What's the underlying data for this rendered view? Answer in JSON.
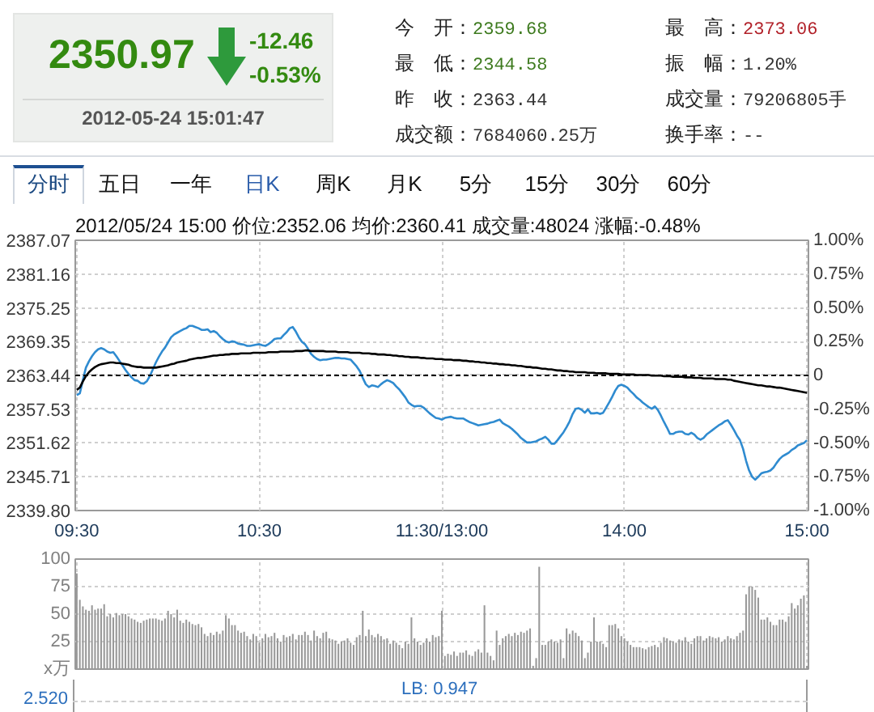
{
  "chart_data": [
    {
      "type": "other",
      "title": "2350.97",
      "annotations": [
        "-12.46",
        "-0.53%",
        "2012-05-24 15:01:47",
        "今　开：",
        "2359.68",
        "最　高：",
        "2373.06",
        "最　低：",
        "2344.58",
        "振　幅：",
        "1.20%",
        "昨　收：",
        "2363.44",
        "成交量：",
        "79206805手",
        "成交额：",
        "7684060.25万",
        "换手率：",
        "--"
      ]
    },
    {
      "type": "other",
      "categories": [
        "分时",
        "五日",
        "一年",
        "日K",
        "周K",
        "月K",
        "5分",
        "15分",
        "30分",
        "60分"
      ]
    },
    {
      "type": "line",
      "title": "2012/05/24 15:00 价位:2352.06 均价:2360.41 成交量:48024 涨幅:-0.48%",
      "categories": [
        "09:30",
        null,
        null,
        null,
        null,
        null,
        null,
        null,
        null,
        null,
        null,
        null,
        null,
        null,
        null,
        null,
        null,
        null,
        null,
        null,
        null,
        null,
        null,
        null,
        null,
        null,
        null,
        null,
        null,
        null,
        null,
        null,
        null,
        null,
        null,
        null,
        null,
        null,
        null,
        null,
        null,
        null,
        null,
        null,
        null,
        null,
        null,
        null,
        null,
        null,
        null,
        null,
        null,
        null,
        null,
        null,
        null,
        null,
        null,
        null,
        "10:30",
        null,
        null,
        null,
        null,
        null,
        null,
        null,
        null,
        null,
        null,
        null,
        null,
        null,
        null,
        null,
        null,
        null,
        null,
        null,
        null,
        null,
        null,
        null,
        null,
        null,
        null,
        null,
        null,
        null,
        null,
        null,
        null,
        null,
        null,
        null,
        null,
        null,
        null,
        null,
        null,
        null,
        null,
        null,
        null,
        null,
        null,
        null,
        null,
        null,
        null,
        null,
        null,
        null,
        null,
        null,
        null,
        null,
        null,
        null,
        "11:30/13:00",
        null,
        null,
        null,
        null,
        null,
        null,
        null,
        null,
        null,
        null,
        null,
        null,
        null,
        null,
        null,
        null,
        null,
        null,
        null,
        null,
        null,
        null,
        null,
        null,
        null,
        null,
        null,
        null,
        null,
        null,
        null,
        null,
        null,
        null,
        null,
        null,
        null,
        null,
        null,
        null,
        null,
        null,
        null,
        null,
        null,
        null,
        null,
        null,
        null,
        null,
        null,
        null,
        null,
        null,
        null,
        null,
        null,
        null,
        null,
        "14:00",
        null,
        null,
        null,
        null,
        null,
        null,
        null,
        null,
        null,
        null,
        null,
        null,
        null,
        null,
        null,
        null,
        null,
        null,
        null,
        null,
        null,
        null,
        null,
        null,
        null,
        null,
        null,
        null,
        null,
        null,
        null,
        null,
        null,
        null,
        null,
        null,
        null,
        null,
        null,
        null,
        null,
        null,
        null,
        null,
        null,
        null,
        null,
        null,
        null,
        null,
        null,
        null,
        null,
        null,
        null,
        null,
        null,
        null,
        null,
        "15:00"
      ],
      "ylim": [
        2339.8,
        2387.07
      ],
      "yticks": [
        {
          "value": 2339.8,
          "label": "2339.80"
        },
        2345.71,
        2351.62,
        2357.53,
        2363.44,
        2369.35,
        2375.25,
        2381.16,
        2387.07
      ],
      "y2lim": [
        -1,
        1
      ],
      "y2ticks": [
        {
          "value": -1,
          "label": "-1.00%"
        },
        {
          "value": -0.75,
          "label": "-0.75%"
        },
        {
          "value": -0.5,
          "label": "-0.50%"
        },
        {
          "value": -0.25,
          "label": "-0.25%"
        },
        0,
        {
          "value": 0.25,
          "label": "0.25%"
        },
        {
          "value": 0.5,
          "label": "0.50%"
        },
        {
          "value": 0.75,
          "label": "0.75%"
        },
        {
          "value": 1,
          "label": "1.00%"
        }
      ],
      "grid": true,
      "ref_lines": [
        {
          "axis": "y",
          "value": 2363.44,
          "color": "#000000",
          "line_style": "dashed"
        }
      ],
      "series": [
        {
          "color": "#2f8bd0",
          "values": [
            2360.0,
            2360.3,
            2362.6,
            2364.8,
            2365.9,
            2366.8,
            2367.5,
            2368.0,
            2368.2,
            2368.0,
            2367.6,
            2367.4,
            2367.5,
            2366.8,
            2366.0,
            2365.2,
            2364.4,
            2363.7,
            2363.1,
            2362.6,
            2362.5,
            2362.1,
            2362.0,
            2362.4,
            2363.3,
            2364.5,
            2365.7,
            2366.7,
            2367.6,
            2368.3,
            2369.2,
            2370.1,
            2370.6,
            2370.9,
            2371.2,
            2371.5,
            2371.7,
            2372.1,
            2372.1,
            2371.9,
            2371.7,
            2371.4,
            2371.4,
            2371.5,
            2371.0,
            2371.2,
            2370.9,
            2370.3,
            2369.8,
            2369.4,
            2369.2,
            2369.4,
            2369.3,
            2369.0,
            2368.9,
            2368.8,
            2368.6,
            2368.6,
            2368.7,
            2368.8,
            2368.9,
            2368.7,
            2368.6,
            2368.9,
            2369.3,
            2369.8,
            2369.9,
            2369.9,
            2370.5,
            2371.0,
            2371.7,
            2371.9,
            2371.1,
            2370.1,
            2369.3,
            2368.9,
            2368.1,
            2367.2,
            2366.7,
            2366.3,
            2366.1,
            2366.2,
            2366.2,
            2366.3,
            2366.4,
            2366.5,
            2366.5,
            2366.4,
            2366.4,
            2366.3,
            2366.2,
            2365.6,
            2365.0,
            2364.2,
            2363.0,
            2361.9,
            2361.4,
            2361.7,
            2361.6,
            2361.4,
            2361.9,
            2362.3,
            2362.6,
            2362.4,
            2362.1,
            2361.5,
            2361.0,
            2360.3,
            2359.6,
            2358.7,
            2358.3,
            2358.0,
            2358.1,
            2358.1,
            2357.8,
            2357.3,
            2356.8,
            2356.4,
            2356.0,
            2355.9,
            2355.7,
            2356.0,
            2356.1,
            2356.2,
            2356.0,
            2355.9,
            2355.9,
            2355.9,
            2355.6,
            2355.3,
            2355.1,
            2354.9,
            2354.7,
            2354.8,
            2354.9,
            2355.0,
            2355.2,
            2355.3,
            2355.5,
            2355.7,
            2355.1,
            2354.8,
            2354.5,
            2354.1,
            2353.6,
            2353.1,
            2352.5,
            2352.1,
            2351.7,
            2351.7,
            2351.8,
            2351.9,
            2352.2,
            2352.4,
            2352.7,
            2352.2,
            2351.5,
            2351.5,
            2352.1,
            2352.8,
            2353.5,
            2354.4,
            2355.4,
            2356.7,
            2357.6,
            2357.7,
            2357.4,
            2356.9,
            2357.5,
            2356.8,
            2356.8,
            2356.9,
            2356.7,
            2356.9,
            2357.8,
            2358.7,
            2359.7,
            2360.8,
            2361.6,
            2361.8,
            2361.6,
            2361.3,
            2360.7,
            2360.2,
            2359.6,
            2359.2,
            2358.7,
            2358.3,
            2357.9,
            2357.6,
            2358.0,
            2357.4,
            2356.4,
            2355.3,
            2354.3,
            2353.2,
            2353.2,
            2353.5,
            2353.6,
            2353.6,
            2353.2,
            2353.1,
            2353.4,
            2353.1,
            2352.5,
            2352.2,
            2352.5,
            2353.1,
            2353.5,
            2353.9,
            2354.3,
            2354.7,
            2355.0,
            2355.4,
            2355.6,
            2354.8,
            2353.9,
            2352.9,
            2352.1,
            2350.6,
            2348.5,
            2346.8,
            2345.7,
            2345.2,
            2345.7,
            2346.3,
            2346.5,
            2346.6,
            2346.8,
            2347.3,
            2348.1,
            2348.8,
            2349.3,
            2349.6,
            2349.9,
            2350.4,
            2350.7,
            2351.2,
            2351.4,
            2351.6,
            2352.1
          ]
        },
        {
          "color": "#000000",
          "values": [
            2360.9,
            2361.3,
            2362.4,
            2363.3,
            2364.0,
            2364.5,
            2364.9,
            2365.2,
            2365.4,
            2365.5,
            2365.6,
            2365.7,
            2365.7,
            2365.6,
            2365.6,
            2365.5,
            2365.4,
            2365.3,
            2365.1,
            2365.0,
            2364.9,
            2364.9,
            2364.8,
            2364.8,
            2364.8,
            2364.8,
            2364.8,
            2364.9,
            2365.0,
            2365.1,
            2365.2,
            2365.4,
            2365.5,
            2365.7,
            2365.8,
            2365.9,
            2366.0,
            2366.2,
            2366.3,
            2366.4,
            2366.5,
            2366.5,
            2366.6,
            2366.7,
            2366.8,
            2366.9,
            2366.9,
            2367.0,
            2367.0,
            2367.1,
            2367.1,
            2367.2,
            2367.2,
            2367.2,
            2367.3,
            2367.3,
            2367.3,
            2367.3,
            2367.4,
            2367.4,
            2367.4,
            2367.4,
            2367.4,
            2367.5,
            2367.5,
            2367.5,
            2367.5,
            2367.6,
            2367.6,
            2367.6,
            2367.6,
            2367.6,
            2367.7,
            2367.7,
            2367.7,
            2367.8,
            2367.8,
            2367.7,
            2367.7,
            2367.7,
            2367.7,
            2367.7,
            2367.6,
            2367.6,
            2367.6,
            2367.6,
            2367.5,
            2367.5,
            2367.5,
            2367.5,
            2367.4,
            2367.4,
            2367.4,
            2367.4,
            2367.3,
            2367.3,
            2367.3,
            2367.2,
            2367.2,
            2367.1,
            2367.1,
            2367.1,
            2367.0,
            2367.0,
            2366.9,
            2366.9,
            2366.8,
            2366.8,
            2366.7,
            2366.7,
            2366.6,
            2366.6,
            2366.6,
            2366.5,
            2366.5,
            2366.4,
            2366.4,
            2366.4,
            2366.3,
            2366.3,
            2366.3,
            2366.2,
            2366.2,
            2366.2,
            2366.1,
            2366.1,
            2366.1,
            2366.0,
            2366.0,
            2365.9,
            2365.9,
            2365.8,
            2365.8,
            2365.7,
            2365.7,
            2365.6,
            2365.6,
            2365.5,
            2365.5,
            2365.4,
            2365.4,
            2365.3,
            2365.3,
            2365.2,
            2365.2,
            2365.1,
            2365.1,
            2365.0,
            2364.9,
            2364.9,
            2364.8,
            2364.8,
            2364.7,
            2364.6,
            2364.6,
            2364.5,
            2364.5,
            2364.4,
            2364.3,
            2364.3,
            2364.2,
            2364.2,
            2364.1,
            2364.1,
            2364.0,
            2364.0,
            2364.0,
            2364.0,
            2363.9,
            2363.9,
            2363.9,
            2363.8,
            2363.8,
            2363.8,
            2363.8,
            2363.7,
            2363.7,
            2363.7,
            2363.7,
            2363.6,
            2363.6,
            2363.6,
            2363.6,
            2363.6,
            2363.5,
            2363.5,
            2363.5,
            2363.5,
            2363.5,
            2363.4,
            2363.4,
            2363.4,
            2363.4,
            2363.3,
            2363.3,
            2363.3,
            2363.2,
            2363.2,
            2363.2,
            2363.2,
            2363.1,
            2363.1,
            2363.1,
            2363.0,
            2363.0,
            2363.0,
            2362.9,
            2362.9,
            2362.9,
            2362.9,
            2362.8,
            2362.8,
            2362.8,
            2362.8,
            2362.7,
            2362.7,
            2362.5,
            2362.4,
            2362.3,
            2362.2,
            2362.1,
            2362.0,
            2361.9,
            2361.8,
            2361.7,
            2361.7,
            2361.6,
            2361.5,
            2361.5,
            2361.4,
            2361.3,
            2361.3,
            2361.2,
            2361.1,
            2361.0,
            2360.9,
            2360.8,
            2360.7,
            2360.6,
            2360.5,
            2360.4
          ]
        }
      ]
    },
    {
      "type": "bar",
      "color": "#999999",
      "ylim": [
        0,
        100
      ],
      "yticks": [
        {
          "value": 0,
          "label": "x万"
        },
        25,
        50,
        75,
        100
      ],
      "grid": true,
      "tick_labels": "y",
      "categories": [
        null,
        null,
        null,
        null,
        null,
        null,
        null,
        null,
        null,
        null,
        null,
        null,
        null,
        null,
        null,
        null,
        null,
        null,
        null,
        null,
        null,
        null,
        null,
        null,
        null,
        null,
        null,
        null,
        null,
        null,
        null,
        null,
        null,
        null,
        null,
        null,
        null,
        null,
        null,
        null,
        null,
        null,
        null,
        null,
        null,
        null,
        null,
        null,
        null,
        null,
        null,
        null,
        null,
        null,
        null,
        null,
        null,
        null,
        null,
        null,
        null,
        null,
        null,
        null,
        null,
        null,
        null,
        null,
        null,
        null,
        null,
        null,
        null,
        null,
        null,
        null,
        null,
        null,
        null,
        null,
        null,
        null,
        null,
        null,
        null,
        null,
        null,
        null,
        null,
        null,
        null,
        null,
        null,
        null,
        null,
        null,
        null,
        null,
        null,
        null,
        null,
        null,
        null,
        null,
        null,
        null,
        null,
        null,
        null,
        null,
        null,
        null,
        null,
        null,
        null,
        null,
        null,
        null,
        null,
        null,
        null,
        null,
        null,
        null,
        null,
        null,
        null,
        null,
        null,
        null,
        null,
        null,
        null,
        null,
        null,
        null,
        null,
        null,
        null,
        null,
        null,
        null,
        null,
        null,
        null,
        null,
        null,
        null,
        null,
        null,
        null,
        null,
        null,
        null,
        null,
        null,
        null,
        null,
        null,
        null,
        null,
        null,
        null,
        null,
        null,
        null,
        null,
        null,
        null,
        null,
        null,
        null,
        null,
        null,
        null,
        null,
        null,
        null,
        null,
        null,
        null,
        null,
        null,
        null,
        null,
        null,
        null,
        null,
        null,
        null,
        null,
        null,
        null,
        null,
        null,
        null,
        null,
        null,
        null,
        null,
        null,
        null,
        null,
        null,
        null,
        null,
        null,
        null,
        null,
        null,
        null,
        null,
        null,
        null,
        null,
        null,
        null,
        null,
        null,
        null,
        null,
        null,
        null,
        null,
        null,
        null,
        null,
        null,
        null,
        null,
        null,
        null,
        null,
        null,
        null,
        null,
        null,
        null,
        null,
        null,
        null
      ],
      "values": [
        87,
        63,
        57,
        54,
        53,
        58,
        54,
        55,
        55,
        59,
        48,
        50,
        47,
        51,
        49,
        50,
        50,
        48,
        46,
        45,
        43,
        42,
        44,
        45,
        46,
        46,
        46,
        45,
        44,
        46,
        53,
        50,
        47,
        54,
        44,
        42,
        45,
        43,
        41,
        40,
        41,
        38,
        32,
        30,
        33,
        31,
        34,
        32,
        35,
        49,
        46,
        40,
        40,
        35,
        33,
        34,
        30,
        27,
        32,
        30,
        24,
        28,
        32,
        29,
        30,
        33,
        28,
        25,
        31,
        29,
        30,
        32,
        27,
        31,
        31,
        34,
        31,
        26,
        35,
        30,
        28,
        33,
        34,
        28,
        27,
        26,
        23,
        25,
        26,
        28,
        24,
        22,
        29,
        31,
        53,
        30,
        36,
        31,
        29,
        32,
        30,
        27,
        28,
        23,
        26,
        24,
        22,
        19,
        25,
        23,
        47,
        28,
        25,
        22,
        24,
        28,
        25,
        31,
        29,
        30,
        53,
        12,
        14,
        13,
        16,
        12,
        15,
        15,
        17,
        13,
        12,
        16,
        18,
        15,
        58,
        15,
        12,
        8,
        35,
        22,
        28,
        30,
        32,
        30,
        33,
        31,
        34,
        33,
        35,
        37,
        3,
        10,
        93,
        22,
        22,
        25,
        27,
        25,
        24,
        27,
        10,
        37,
        32,
        35,
        33,
        30,
        26,
        10,
        15,
        25,
        47,
        25,
        25,
        23,
        20,
        40,
        40,
        41,
        37,
        30,
        28,
        25,
        22,
        20,
        20,
        20,
        19,
        18,
        20,
        21,
        22,
        20,
        24,
        29,
        28,
        26,
        25,
        24,
        27,
        26,
        29,
        25,
        23,
        28,
        30,
        30,
        26,
        28,
        30,
        29,
        28,
        29,
        25,
        27,
        30,
        28,
        27,
        30,
        33,
        35,
        68,
        75,
        75,
        72,
        65,
        45,
        45,
        47,
        43,
        40,
        40,
        45,
        45,
        43,
        48,
        60,
        55,
        58,
        64,
        67,
        3
      ]
    },
    {
      "type": "other",
      "annotations": [
        "2.520",
        "LB: 0.947"
      ]
    }
  ]
}
